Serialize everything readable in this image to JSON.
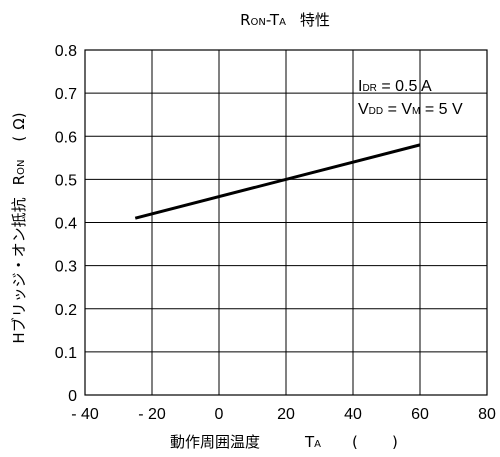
{
  "chart_data": {
    "type": "line",
    "title": {
      "main": "R",
      "main_sub": "ON",
      "dash": "-T",
      "dash_sub": "A",
      "suffix": "特性"
    },
    "xlabel": {
      "main": "動作周囲温度",
      "sym": "T",
      "sym_sub": "A",
      "unit_open": "(",
      "unit_close": ")"
    },
    "ylabel": {
      "main": "Hブリッジ・オン抵抗",
      "sym": "R",
      "sym_sub": "ON",
      "unit_open": "(",
      "unit": "Ω",
      "unit_close": ")"
    },
    "xlim": [
      -40,
      80
    ],
    "ylim": [
      0,
      0.8
    ],
    "xticks": [
      -40,
      -20,
      0,
      20,
      40,
      60,
      80
    ],
    "xtick_labels": [
      "- 40",
      "- 20",
      "0",
      "20",
      "40",
      "60",
      "80"
    ],
    "yticks": [
      0,
      0.1,
      0.2,
      0.3,
      0.4,
      0.5,
      0.6,
      0.7,
      0.8
    ],
    "ytick_labels": [
      "0",
      "0.1",
      "0.2",
      "0.3",
      "0.4",
      "0.5",
      "0.6",
      "0.7",
      "0.8"
    ],
    "grid": true,
    "series": [
      {
        "x": [
          -25,
          60
        ],
        "y": [
          0.41,
          0.58
        ]
      }
    ],
    "annotations": [
      {
        "prefix": "I",
        "sub": "DR",
        "text": " = 0.5 A"
      },
      {
        "prefix": "V",
        "sub": "DD",
        "text": " = V",
        "sub2": "M",
        "text2": " = 5 V"
      }
    ],
    "colors": {
      "line": "#000000",
      "grid": "#000000"
    }
  }
}
